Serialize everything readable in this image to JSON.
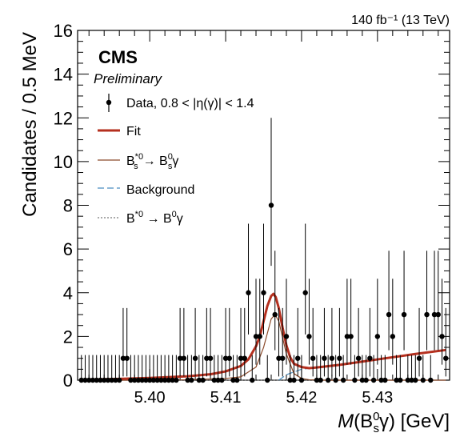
{
  "header": {
    "lumi_label": "140 fb⁻¹ (13 TeV)"
  },
  "overlay": {
    "experiment": "CMS",
    "status": "Preliminary"
  },
  "legend": {
    "data": "Data, 0.8 < |η(γ)| < 1.4",
    "fit": "Fit",
    "signal": "B_s*0 → B_s0 γ",
    "background": "Background",
    "peaking": "B*0 → B0 γ"
  },
  "colors": {
    "fit": "#b5301f",
    "signal": "#8b4a2a",
    "background": "#4a8ec0",
    "peaking": "#555555",
    "data": "#000000"
  },
  "chart_data": {
    "type": "scatter",
    "xlabel": "M(B_s0 γ) [GeV]",
    "ylabel": "Candidates / 0.5 MeV",
    "xlim": [
      5.3905,
      5.4395
    ],
    "ylim": [
      0,
      16
    ],
    "xticks": [
      5.4,
      5.41,
      5.42,
      5.43
    ],
    "yticks": [
      0,
      2,
      4,
      6,
      8,
      10,
      12,
      14,
      16
    ],
    "legend_position": "top-left",
    "series": [
      {
        "name": "Data, 0.8 < |η(γ)| < 1.4",
        "kind": "points_with_errors",
        "x": [
          5.391,
          5.3915,
          5.392,
          5.3925,
          5.393,
          5.3935,
          5.394,
          5.3945,
          5.395,
          5.3955,
          5.396,
          5.3965,
          5.397,
          5.3975,
          5.398,
          5.3985,
          5.399,
          5.3995,
          5.4,
          5.4005,
          5.401,
          5.4015,
          5.402,
          5.4025,
          5.403,
          5.4035,
          5.404,
          5.4045,
          5.405,
          5.4055,
          5.406,
          5.4065,
          5.407,
          5.4075,
          5.408,
          5.4085,
          5.409,
          5.4095,
          5.41,
          5.4105,
          5.411,
          5.4115,
          5.412,
          5.4125,
          5.413,
          5.4135,
          5.414,
          5.4145,
          5.415,
          5.4155,
          5.416,
          5.4165,
          5.417,
          5.4175,
          5.418,
          5.4185,
          5.419,
          5.4195,
          5.42,
          5.4205,
          5.421,
          5.4215,
          5.422,
          5.4225,
          5.423,
          5.4235,
          5.424,
          5.4245,
          5.425,
          5.4255,
          5.426,
          5.4265,
          5.427,
          5.4275,
          5.428,
          5.4285,
          5.429,
          5.4295,
          5.43,
          5.4305,
          5.431,
          5.4315,
          5.432,
          5.4325,
          5.433,
          5.4335,
          5.434,
          5.4345,
          5.435,
          5.4355,
          5.436,
          5.4365,
          5.437,
          5.4375,
          5.438,
          5.4385,
          5.439
        ],
        "y": [
          0,
          0,
          0,
          0,
          0,
          0,
          0,
          0,
          0,
          0,
          0,
          1,
          1,
          0,
          0,
          0,
          0,
          0,
          0,
          0,
          0,
          0,
          0,
          0,
          0,
          0,
          1,
          1,
          0,
          0,
          1,
          0,
          0,
          1,
          1,
          0,
          0,
          0,
          1,
          1,
          0,
          0,
          1,
          1,
          4,
          0,
          2,
          2,
          4,
          0,
          8,
          3,
          1,
          1,
          2,
          0,
          0,
          1,
          0,
          4,
          2,
          1,
          0,
          0,
          1,
          0,
          1,
          0,
          1,
          0,
          2,
          2,
          0,
          1,
          0,
          0,
          1,
          0,
          2,
          0,
          0,
          3,
          2,
          0,
          0,
          3,
          0,
          0,
          0,
          1,
          0,
          3,
          0,
          3,
          3,
          2,
          1
        ],
        "errors": [
          [
            0,
            1.15
          ],
          [
            0,
            1.15
          ],
          [
            0,
            1.15
          ],
          [
            0,
            1.15
          ],
          [
            0,
            1.15
          ],
          [
            0,
            1.15
          ],
          [
            0,
            1.15
          ],
          [
            0,
            1.15
          ],
          [
            0,
            1.15
          ],
          [
            0,
            1.15
          ],
          [
            0,
            1.15
          ],
          [
            0.83,
            2.3
          ],
          [
            0.83,
            2.3
          ],
          [
            0,
            1.15
          ],
          [
            0,
            1.15
          ],
          [
            0,
            1.15
          ],
          [
            0,
            1.15
          ],
          [
            0,
            1.15
          ],
          [
            0,
            1.15
          ],
          [
            0,
            1.15
          ],
          [
            0,
            1.15
          ],
          [
            0,
            1.15
          ],
          [
            0,
            1.15
          ],
          [
            0,
            1.15
          ],
          [
            0,
            1.15
          ],
          [
            0,
            1.15
          ],
          [
            0.83,
            2.3
          ],
          [
            0.83,
            2.3
          ],
          [
            0,
            1.15
          ],
          [
            0,
            1.15
          ],
          [
            0.83,
            2.3
          ],
          [
            0,
            1.15
          ],
          [
            0,
            1.15
          ],
          [
            0.83,
            2.3
          ],
          [
            0.83,
            2.3
          ],
          [
            0,
            1.15
          ],
          [
            0,
            1.15
          ],
          [
            0,
            1.15
          ],
          [
            0.83,
            2.3
          ],
          [
            0.83,
            2.3
          ],
          [
            0,
            1.15
          ],
          [
            0,
            1.15
          ],
          [
            0.83,
            2.3
          ],
          [
            0.83,
            2.3
          ],
          [
            1.91,
            3.16
          ],
          [
            0,
            1.15
          ],
          [
            1.29,
            2.64
          ],
          [
            1.29,
            2.64
          ],
          [
            1.91,
            3.16
          ],
          [
            0,
            1.15
          ],
          [
            2.77,
            4.0
          ],
          [
            1.63,
            2.92
          ],
          [
            0.83,
            2.3
          ],
          [
            0.83,
            2.3
          ],
          [
            1.29,
            2.64
          ],
          [
            0,
            1.15
          ],
          [
            0,
            1.15
          ],
          [
            0.83,
            2.3
          ],
          [
            0,
            1.15
          ],
          [
            1.91,
            3.16
          ],
          [
            1.29,
            2.64
          ],
          [
            0.83,
            2.3
          ],
          [
            0,
            1.15
          ],
          [
            0,
            1.15
          ],
          [
            0.83,
            2.3
          ],
          [
            0,
            1.15
          ],
          [
            0.83,
            2.3
          ],
          [
            0,
            1.15
          ],
          [
            0.83,
            2.3
          ],
          [
            0,
            1.15
          ],
          [
            1.29,
            2.64
          ],
          [
            1.29,
            2.64
          ],
          [
            0,
            1.15
          ],
          [
            0.83,
            2.3
          ],
          [
            0,
            1.15
          ],
          [
            0,
            1.15
          ],
          [
            0.83,
            2.3
          ],
          [
            0,
            1.15
          ],
          [
            1.29,
            2.64
          ],
          [
            0,
            1.15
          ],
          [
            0,
            1.15
          ],
          [
            1.63,
            2.92
          ],
          [
            1.29,
            2.64
          ],
          [
            0,
            1.15
          ],
          [
            0,
            1.15
          ],
          [
            1.63,
            2.92
          ],
          [
            0,
            1.15
          ],
          [
            0,
            1.15
          ],
          [
            0,
            1.15
          ],
          [
            0.83,
            2.3
          ],
          [
            0,
            1.15
          ],
          [
            1.63,
            2.92
          ],
          [
            0,
            1.15
          ],
          [
            1.63,
            2.92
          ],
          [
            1.63,
            2.92
          ],
          [
            1.29,
            2.64
          ],
          [
            0.83,
            2.3
          ]
        ]
      },
      {
        "name": "Fit",
        "kind": "line",
        "x": [
          5.391,
          5.395,
          5.4,
          5.405,
          5.408,
          5.41,
          5.412,
          5.413,
          5.414,
          5.4145,
          5.415,
          5.4155,
          5.416,
          5.4163,
          5.4166,
          5.417,
          5.4175,
          5.418,
          5.4185,
          5.419,
          5.42,
          5.421,
          5.422,
          5.425,
          5.43,
          5.435,
          5.439
        ],
        "y": [
          0.02,
          0.05,
          0.1,
          0.18,
          0.27,
          0.4,
          0.65,
          0.95,
          1.55,
          2.0,
          2.7,
          3.4,
          3.85,
          3.95,
          3.8,
          3.3,
          2.4,
          1.6,
          1.05,
          0.75,
          0.6,
          0.55,
          0.58,
          0.7,
          0.95,
          1.2,
          1.38
        ]
      },
      {
        "name": "B_s*0 → B_s0 γ",
        "kind": "line",
        "x": [
          5.391,
          5.4,
          5.405,
          5.41,
          5.412,
          5.414,
          5.415,
          5.416,
          5.4165,
          5.417,
          5.418,
          5.419,
          5.42,
          5.421,
          5.423,
          5.43,
          5.439
        ],
        "y": [
          0.0,
          0.0,
          0.02,
          0.08,
          0.15,
          0.6,
          1.5,
          2.8,
          3.0,
          2.7,
          1.2,
          0.3,
          0.08,
          0.02,
          0.0,
          0.0,
          0.0
        ]
      },
      {
        "name": "Background",
        "kind": "line",
        "x": [
          5.417,
          5.418,
          5.42,
          5.422,
          5.425,
          5.43,
          5.435,
          5.439
        ],
        "y": [
          0.0,
          0.25,
          0.5,
          0.58,
          0.7,
          0.95,
          1.2,
          1.38
        ]
      },
      {
        "name": "B*0 → B0 γ",
        "kind": "line",
        "x": [
          5.391,
          5.4,
          5.41,
          5.42,
          5.43,
          5.439
        ],
        "y": [
          0.0,
          0.0,
          0.0,
          0.0,
          0.0,
          0.0
        ]
      }
    ]
  }
}
